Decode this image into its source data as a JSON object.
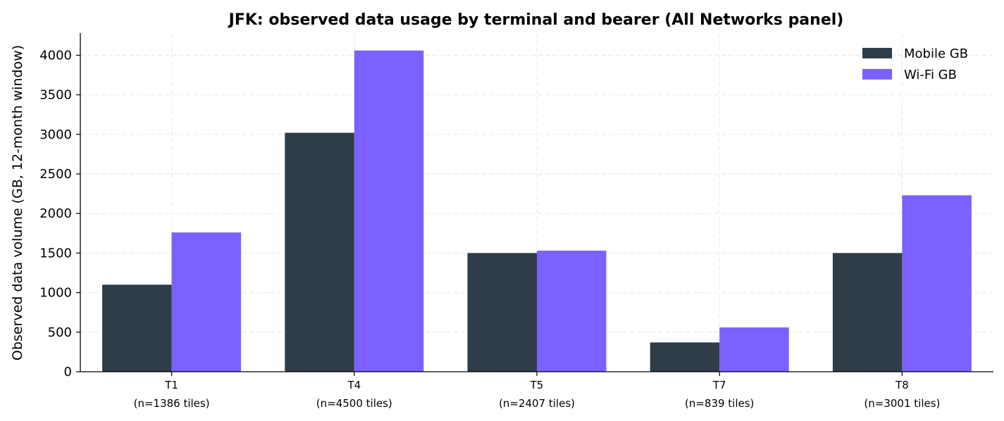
{
  "chart_data": {
    "type": "bar",
    "title": "JFK: observed data usage by terminal and bearer (All Networks panel)",
    "xlabel": "",
    "ylabel": "Observed data volume (GB, 12-month window)",
    "categories": [
      "T1",
      "T4",
      "T5",
      "T7",
      "T8"
    ],
    "category_sublabels": [
      "(n=1386 tiles)",
      "(n=4500 tiles)",
      "(n=2407 tiles)",
      "(n=839 tiles)",
      "(n=3001 tiles)"
    ],
    "series": [
      {
        "name": "Mobile GB",
        "color": "#2e3d48",
        "values": [
          1100,
          3020,
          1500,
          370,
          1500
        ]
      },
      {
        "name": "Wi-Fi GB",
        "color": "#7b61ff",
        "values": [
          1760,
          4060,
          1530,
          560,
          2230
        ]
      }
    ],
    "ylim": [
      0,
      4280
    ],
    "yticks": [
      0,
      500,
      1000,
      1500,
      2000,
      2500,
      3000,
      3500,
      4000
    ],
    "grid": true,
    "legend_position": "top-right"
  }
}
